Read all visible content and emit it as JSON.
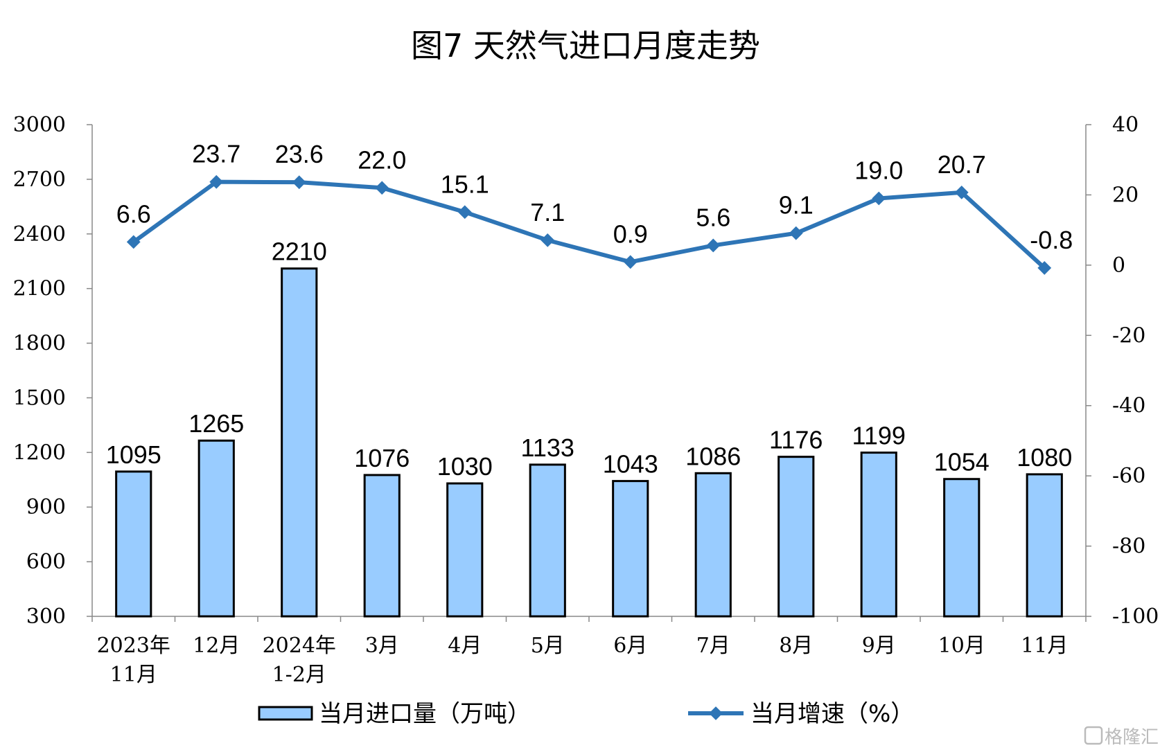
{
  "chart_data": {
    "type": "bar",
    "title": "图7  天然气进口月度走势",
    "categories": [
      [
        "2023年",
        "11月"
      ],
      [
        "12月"
      ],
      [
        "2024年",
        "1-2月"
      ],
      [
        "3月"
      ],
      [
        "4月"
      ],
      [
        "5月"
      ],
      [
        "6月"
      ],
      [
        "7月"
      ],
      [
        "8月"
      ],
      [
        "9月"
      ],
      [
        "10月"
      ],
      [
        "11月"
      ]
    ],
    "series": [
      {
        "name": "当月进口量（万吨）",
        "type": "bar",
        "axis": "left",
        "color": "#99ccff",
        "values": [
          1095,
          1265,
          2210,
          1076,
          1030,
          1133,
          1043,
          1086,
          1176,
          1199,
          1054,
          1080
        ],
        "labels": [
          "1095",
          "1265",
          "2210",
          "1076",
          "1030",
          "1133",
          "1043",
          "1086",
          "1176",
          "1199",
          "1054",
          "1080"
        ]
      },
      {
        "name": "当月增速（%）",
        "type": "line",
        "axis": "right",
        "color": "#2e75b6",
        "values": [
          6.6,
          23.7,
          23.6,
          22.0,
          15.1,
          7.1,
          0.9,
          5.6,
          9.1,
          19.0,
          20.7,
          -0.8
        ],
        "labels": [
          "6.6",
          "23.7",
          "23.6",
          "22.0",
          "15.1",
          "7.1",
          "0.9",
          "5.6",
          "9.1",
          "19.0",
          "20.7",
          "-0.8"
        ]
      }
    ],
    "y_left": {
      "min": 300,
      "max": 3000,
      "ticks": [
        "300",
        "600",
        "900",
        "1200",
        "1500",
        "1800",
        "2100",
        "2400",
        "2700",
        "3000"
      ]
    },
    "y_right": {
      "min": -100,
      "max": 40,
      "ticks": [
        "-100",
        "-80",
        "-60",
        "-40",
        "-20",
        "0",
        "20",
        "40"
      ]
    },
    "grid": false,
    "legend_position": "bottom"
  },
  "watermark": "格隆汇"
}
